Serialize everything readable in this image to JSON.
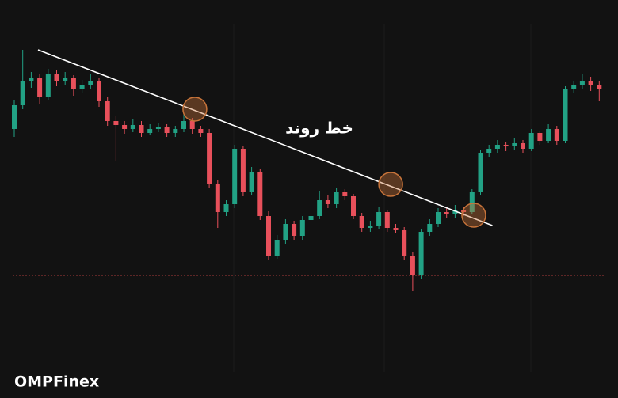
{
  "chart_data": {
    "type": "candlestick",
    "up_color": "#22a285",
    "down_color": "#e8505b",
    "ylim": [
      0,
      503
    ],
    "ohlc": [
      [
        340,
        376,
        330,
        370
      ],
      [
        370,
        440,
        365,
        400
      ],
      [
        400,
        412,
        392,
        405
      ],
      [
        405,
        410,
        372,
        380
      ],
      [
        380,
        416,
        376,
        410
      ],
      [
        410,
        414,
        394,
        400
      ],
      [
        400,
        412,
        396,
        405
      ],
      [
        405,
        408,
        382,
        390
      ],
      [
        390,
        402,
        386,
        395
      ],
      [
        395,
        410,
        390,
        400
      ],
      [
        400,
        404,
        368,
        375
      ],
      [
        375,
        380,
        344,
        350
      ],
      [
        350,
        356,
        300,
        345
      ],
      [
        345,
        350,
        334,
        340
      ],
      [
        340,
        352,
        336,
        345
      ],
      [
        345,
        350,
        330,
        335
      ],
      [
        335,
        346,
        332,
        340
      ],
      [
        340,
        348,
        336,
        342
      ],
      [
        342,
        346,
        330,
        335
      ],
      [
        335,
        344,
        330,
        340
      ],
      [
        340,
        360,
        336,
        350
      ],
      [
        350,
        354,
        334,
        340
      ],
      [
        340,
        344,
        330,
        335
      ],
      [
        335,
        340,
        265,
        270
      ],
      [
        270,
        275,
        215,
        235
      ],
      [
        235,
        250,
        230,
        245
      ],
      [
        245,
        320,
        240,
        315
      ],
      [
        315,
        318,
        255,
        260
      ],
      [
        260,
        292,
        256,
        285
      ],
      [
        285,
        290,
        225,
        230
      ],
      [
        230,
        236,
        175,
        180
      ],
      [
        180,
        206,
        176,
        200
      ],
      [
        200,
        226,
        195,
        220
      ],
      [
        220,
        224,
        200,
        205
      ],
      [
        205,
        230,
        200,
        225
      ],
      [
        225,
        236,
        220,
        230
      ],
      [
        230,
        262,
        226,
        250
      ],
      [
        250,
        256,
        240,
        245
      ],
      [
        245,
        266,
        240,
        260
      ],
      [
        260,
        264,
        250,
        255
      ],
      [
        255,
        258,
        226,
        230
      ],
      [
        230,
        234,
        210,
        215
      ],
      [
        215,
        224,
        210,
        218
      ],
      [
        218,
        242,
        214,
        235
      ],
      [
        235,
        238,
        210,
        215
      ],
      [
        215,
        220,
        208,
        212
      ],
      [
        212,
        216,
        174,
        180
      ],
      [
        180,
        184,
        135,
        155
      ],
      [
        155,
        214,
        150,
        210
      ],
      [
        210,
        226,
        205,
        220
      ],
      [
        220,
        240,
        216,
        235
      ],
      [
        235,
        240,
        228,
        232
      ],
      [
        232,
        244,
        228,
        238
      ],
      [
        238,
        242,
        230,
        235
      ],
      [
        235,
        264,
        232,
        260
      ],
      [
        260,
        314,
        256,
        310
      ],
      [
        310,
        320,
        305,
        315
      ],
      [
        315,
        326,
        310,
        320
      ],
      [
        320,
        324,
        312,
        318
      ],
      [
        318,
        328,
        314,
        322
      ],
      [
        322,
        326,
        310,
        315
      ],
      [
        315,
        340,
        312,
        335
      ],
      [
        335,
        338,
        320,
        325
      ],
      [
        325,
        346,
        322,
        340
      ],
      [
        340,
        344,
        320,
        325
      ],
      [
        325,
        394,
        322,
        390
      ],
      [
        390,
        400,
        386,
        395
      ],
      [
        395,
        410,
        390,
        400
      ],
      [
        400,
        406,
        388,
        395
      ],
      [
        395,
        400,
        375,
        390
      ]
    ],
    "trendline": {
      "label": "خط روند",
      "x": [
        2.8,
        56.4
      ],
      "y": [
        440,
        218
      ],
      "color": "#ffffff"
    },
    "touch_points": {
      "x": [
        21.3,
        44.4,
        54.2
      ],
      "y": [
        365,
        270,
        231
      ],
      "color": "#c8743a"
    },
    "support_level": {
      "value": 155,
      "color": "#a83a3a"
    },
    "watermark": "OMPFinex"
  }
}
